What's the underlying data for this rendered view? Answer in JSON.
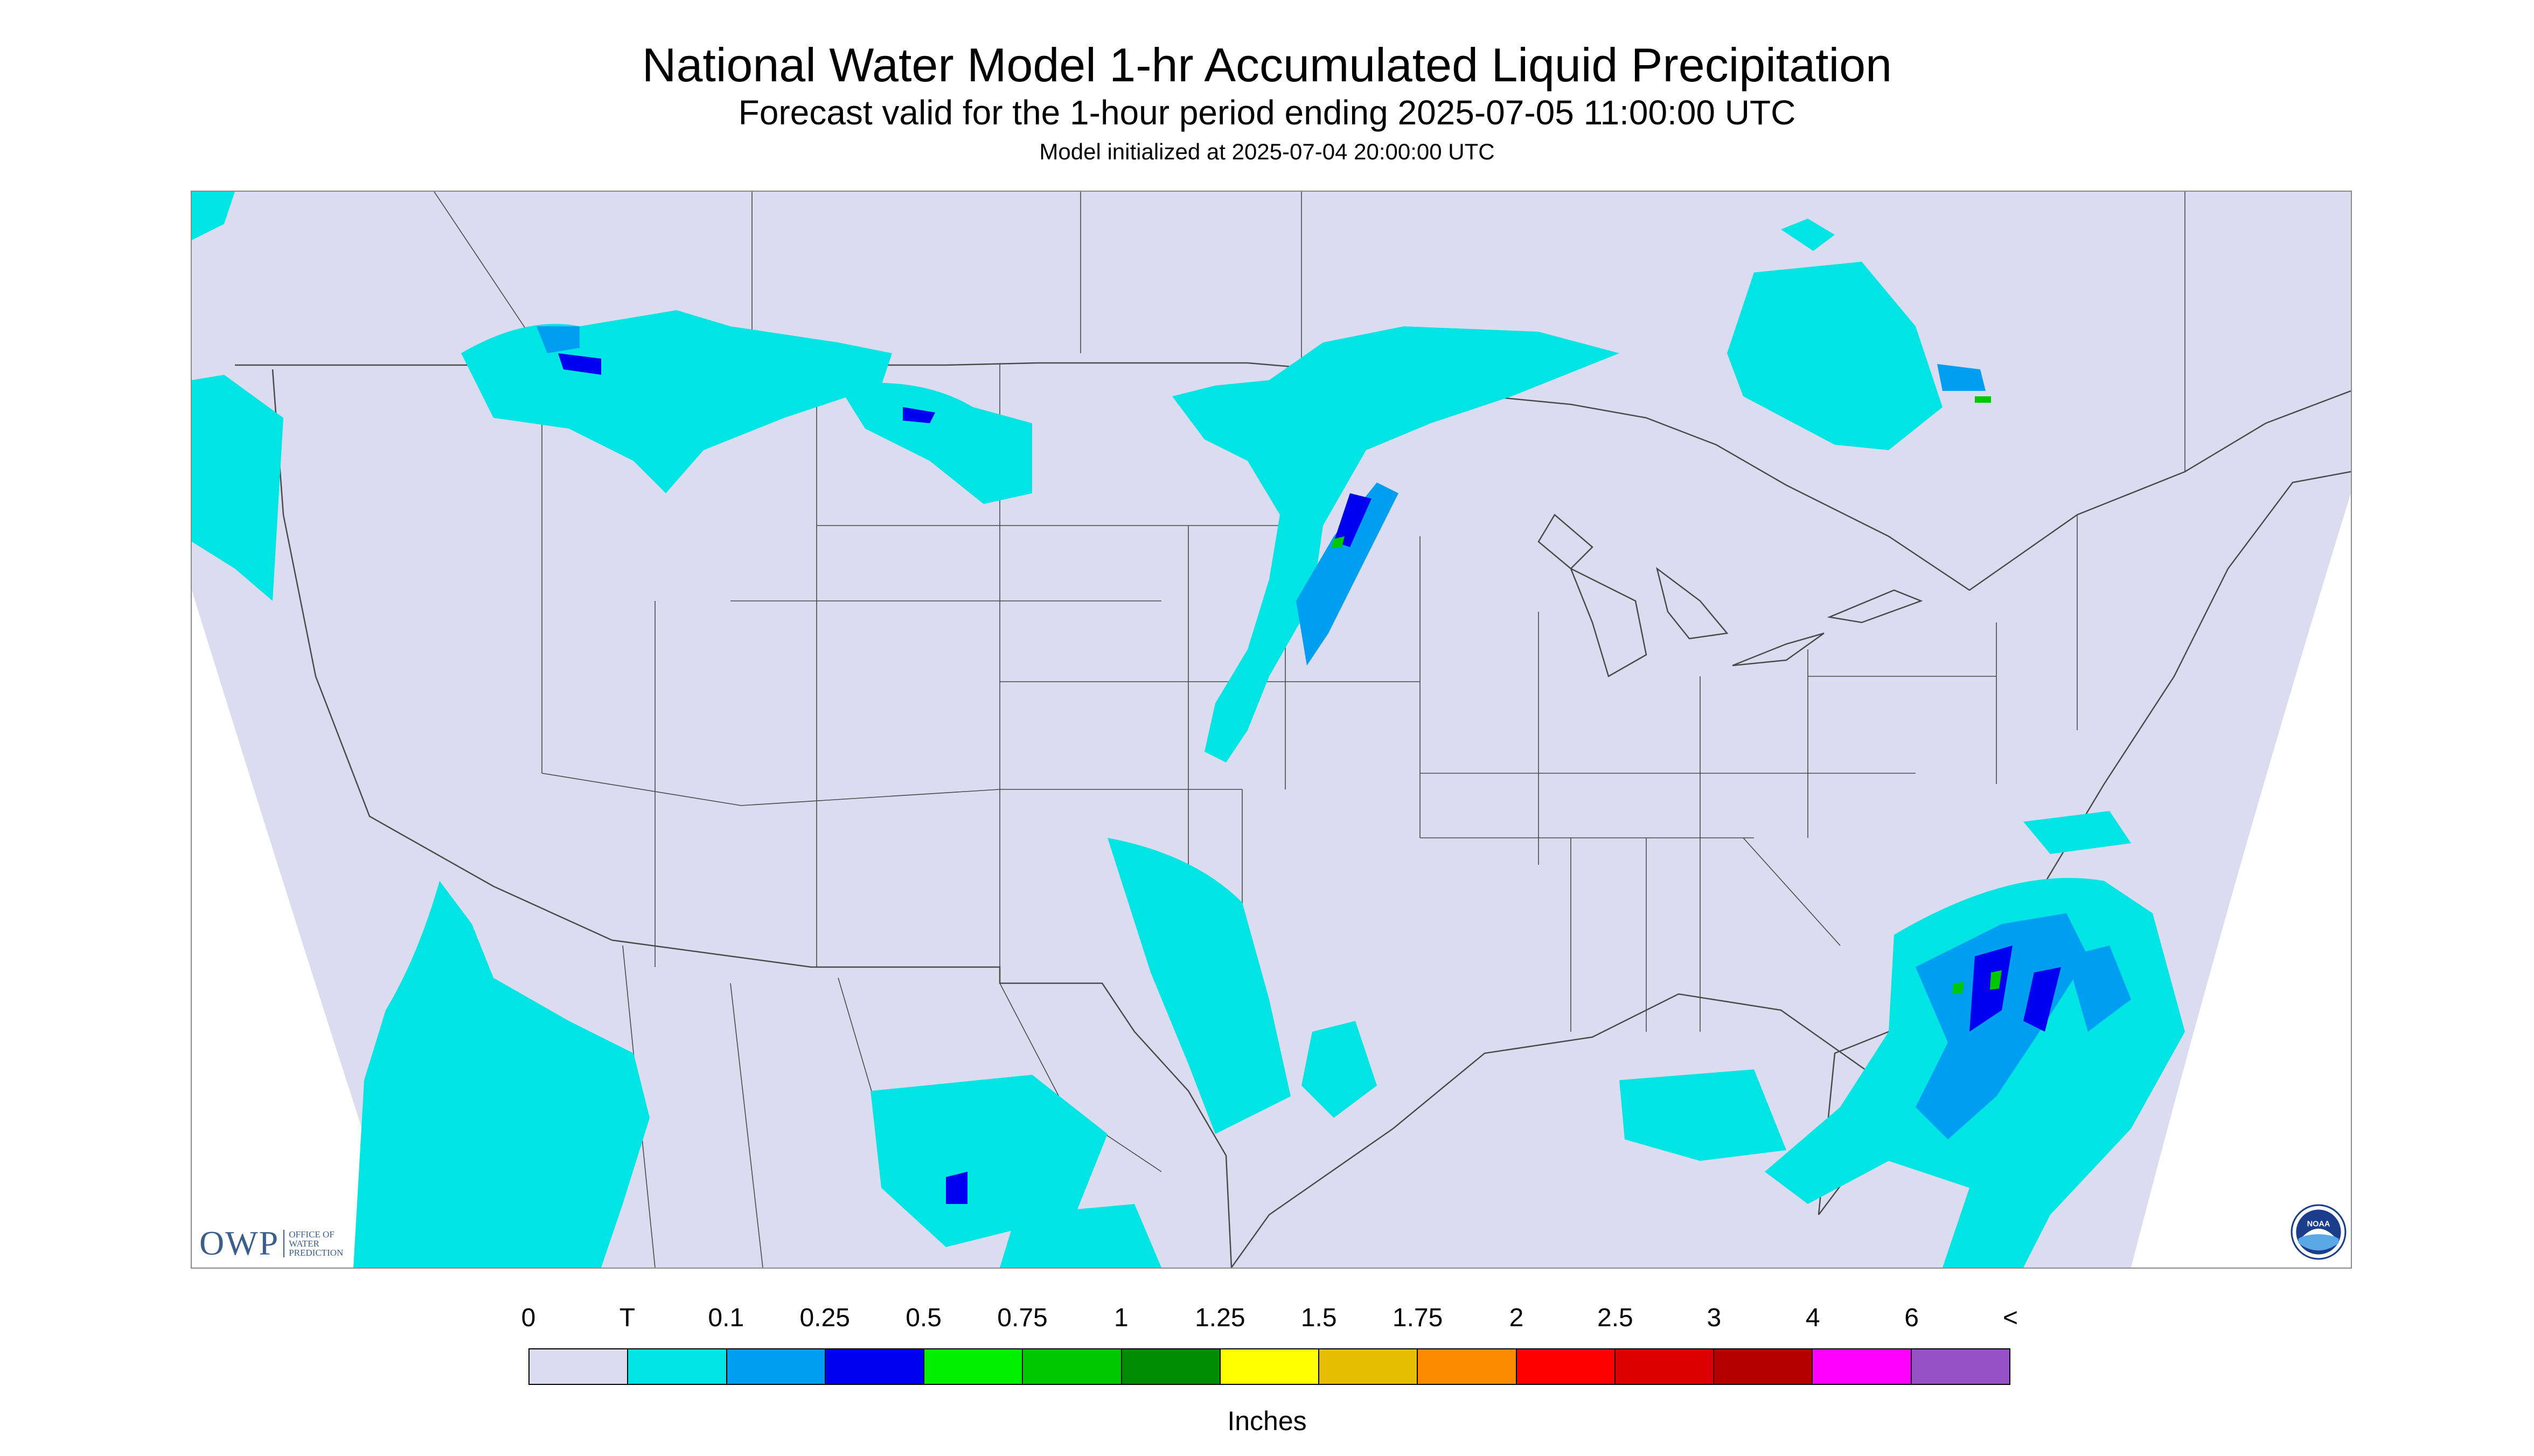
{
  "header": {
    "title": "National Water Model 1-hr Accumulated Liquid Precipitation",
    "subtitle": "Forecast valid for the 1-hour period ending 2025-07-05 11:00:00 UTC",
    "init": "Model initialized at 2025-07-04 20:00:00 UTC"
  },
  "logos": {
    "owp_big": "OWP",
    "owp_small": "OFFICE OF WATER PREDICTION",
    "noaa": "NOAA"
  },
  "legend": {
    "labels": [
      "0",
      "T",
      "0.1",
      "0.25",
      "0.5",
      "0.75",
      "1",
      "1.25",
      "1.5",
      "1.75",
      "2",
      "2.5",
      "3",
      "4",
      "6",
      "<"
    ],
    "colors": [
      "#dcdcf0",
      "#00e4e4",
      "#009ef0",
      "#0000f0",
      "#00f000",
      "#00c800",
      "#008c00",
      "#ffff00",
      "#e6be00",
      "#ff8c00",
      "#ff0000",
      "#dc0000",
      "#b40000",
      "#ff00ff",
      "#9650c8"
    ],
    "units": "Inches"
  },
  "map_colors": {
    "domain": "#dcdcf0",
    "outside": "#ffffff",
    "border": "#4a4a4a",
    "trace": "#00e4e4",
    "light": "#009ef0",
    "moderate": "#0000f0",
    "heavy": "#00c800"
  }
}
